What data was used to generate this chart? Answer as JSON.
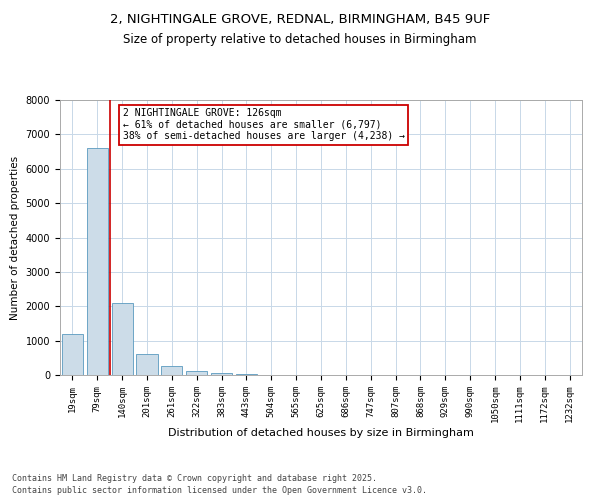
{
  "title1": "2, NIGHTINGALE GROVE, REDNAL, BIRMINGHAM, B45 9UF",
  "title2": "Size of property relative to detached houses in Birmingham",
  "xlabel": "Distribution of detached houses by size in Birmingham",
  "ylabel": "Number of detached properties",
  "categories": [
    "19sqm",
    "79sqm",
    "140sqm",
    "201sqm",
    "261sqm",
    "322sqm",
    "383sqm",
    "443sqm",
    "504sqm",
    "565sqm",
    "625sqm",
    "686sqm",
    "747sqm",
    "807sqm",
    "868sqm",
    "929sqm",
    "990sqm",
    "1050sqm",
    "1111sqm",
    "1172sqm",
    "1232sqm"
  ],
  "values": [
    1200,
    6600,
    2100,
    600,
    270,
    110,
    50,
    20,
    10,
    5,
    3,
    0,
    0,
    0,
    0,
    0,
    0,
    0,
    0,
    0,
    0
  ],
  "bar_color": "#ccdce8",
  "bar_edge_color": "#5a9abf",
  "vline_x_index": 1.5,
  "vline_color": "#cc0000",
  "annotation_text": "2 NIGHTINGALE GROVE: 126sqm\n← 61% of detached houses are smaller (6,797)\n38% of semi-detached houses are larger (4,238) →",
  "annotation_box_color": "#cc0000",
  "ylim": [
    0,
    8000
  ],
  "yticks": [
    0,
    1000,
    2000,
    3000,
    4000,
    5000,
    6000,
    7000,
    8000
  ],
  "footer": "Contains HM Land Registry data © Crown copyright and database right 2025.\nContains public sector information licensed under the Open Government Licence v3.0.",
  "bg_color": "#ffffff",
  "grid_color": "#c8d8e8",
  "title1_fontsize": 9.5,
  "title2_fontsize": 8.5,
  "annot_fontsize": 7,
  "footer_fontsize": 6,
  "ylabel_fontsize": 7.5,
  "xlabel_fontsize": 8
}
